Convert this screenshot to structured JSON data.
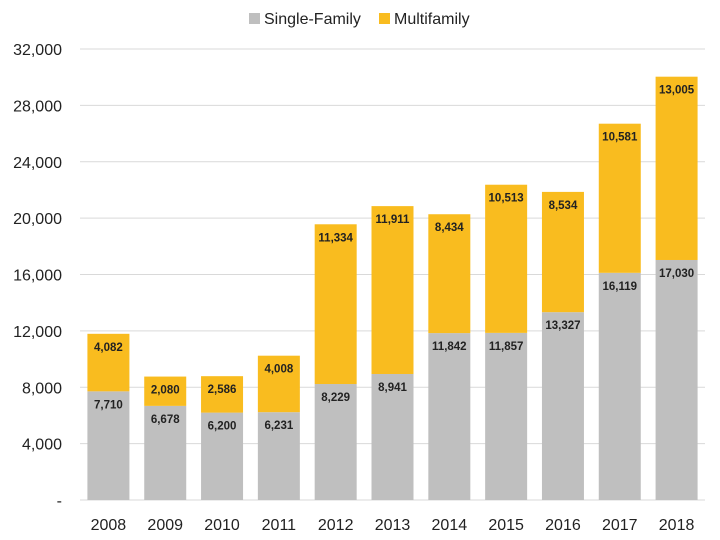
{
  "chart_data": {
    "type": "bar",
    "stacked": true,
    "title": "",
    "xlabel": "",
    "ylabel": "",
    "categories": [
      "2008",
      "2009",
      "2010",
      "2011",
      "2012",
      "2013",
      "2014",
      "2015",
      "2016",
      "2017",
      "2018"
    ],
    "series": [
      {
        "name": "Single-Family",
        "color": "#bfbfbf",
        "values": [
          7710,
          6678,
          6200,
          6231,
          8229,
          8941,
          11842,
          11857,
          13327,
          16119,
          17030
        ],
        "labels": [
          "7,710",
          "6,678",
          "6,200",
          "6,231",
          "8,229",
          "8,941",
          "11,842",
          "11,857",
          "13,327",
          "16,119",
          "17,030"
        ]
      },
      {
        "name": "Multifamily",
        "color": "#f9bc1f",
        "values": [
          4082,
          2080,
          2586,
          4008,
          11334,
          11911,
          8434,
          10513,
          8534,
          10581,
          13005
        ],
        "labels": [
          "4,082",
          "2,080",
          "2,586",
          "4,008",
          "11,334",
          "11,911",
          "8,434",
          "10,513",
          "8,534",
          "10,581",
          "13,005"
        ]
      }
    ],
    "ylim": [
      0,
      32000
    ],
    "yticks": [
      0,
      4000,
      8000,
      12000,
      16000,
      20000,
      24000,
      28000,
      32000
    ],
    "ytick_labels": [
      "-",
      "4,000",
      "8,000",
      "12,000",
      "16,000",
      "20,000",
      "24,000",
      "28,000",
      "32,000"
    ],
    "grid": true,
    "legend_position": "top-center"
  }
}
